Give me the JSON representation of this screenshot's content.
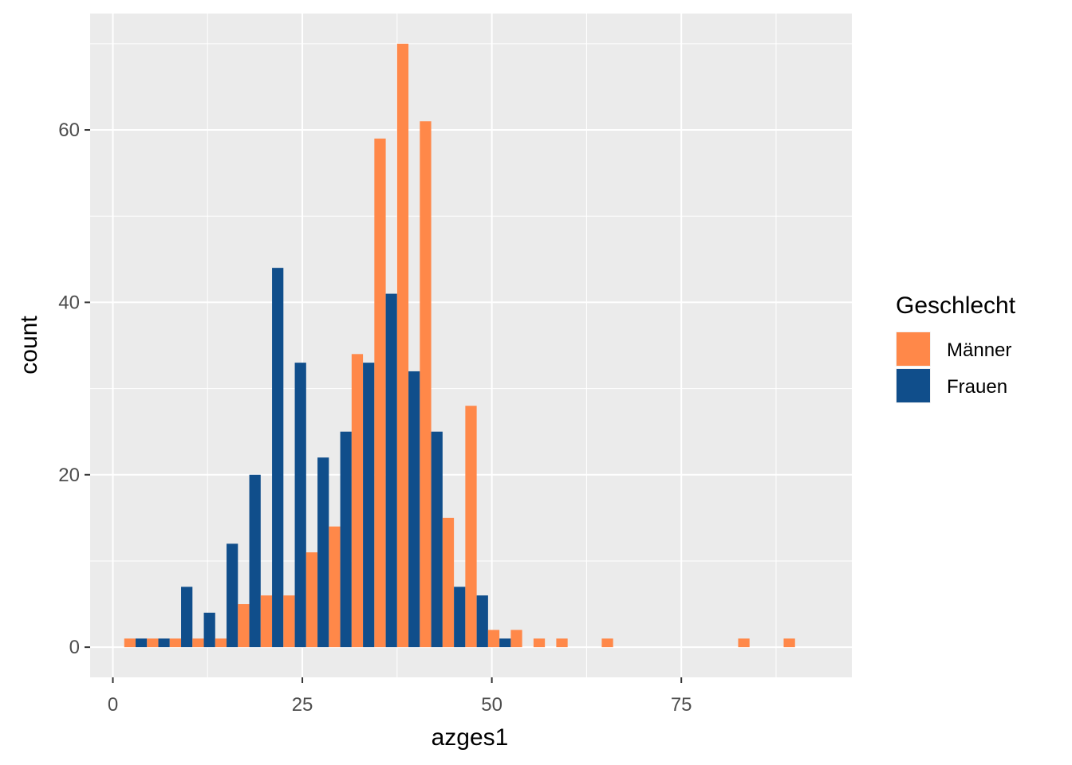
{
  "chart_data": {
    "type": "bar",
    "title": "",
    "xlabel": "azges1",
    "ylabel": "count",
    "x_ticks": [
      0,
      25,
      50,
      75
    ],
    "y_ticks": [
      0,
      20,
      40,
      60
    ],
    "xlim": [
      -3.0,
      97.5
    ],
    "ylim": [
      -3.5,
      73.5
    ],
    "bin_width": 3.0,
    "grid": true,
    "legend": {
      "title": "Geschlecht",
      "position": "right"
    },
    "bin_centers": [
      3.0,
      6.0,
      9.0,
      12.0,
      15.0,
      18.0,
      21.0,
      24.0,
      27.0,
      30.0,
      33.0,
      36.0,
      39.0,
      42.0,
      45.0,
      48.0,
      51.0,
      54.0,
      57.0,
      60.0,
      63.0,
      66.0,
      69.0,
      72.0,
      75.0,
      78.0,
      81.0,
      84.0,
      87.0,
      90.0
    ],
    "series": [
      {
        "name": "Männer",
        "color": "#FF8849",
        "values": [
          1,
          1,
          1,
          1,
          1,
          5,
          6,
          6,
          11,
          14,
          34,
          59,
          70,
          61,
          15,
          28,
          2,
          2,
          1,
          1,
          0,
          1,
          0,
          0,
          0,
          0,
          0,
          1,
          0,
          1
        ]
      },
      {
        "name": "Frauen",
        "color": "#104E8B",
        "values": [
          1,
          1,
          7,
          4,
          12,
          20,
          44,
          33,
          22,
          25,
          33,
          41,
          32,
          25,
          7,
          6,
          1,
          0,
          0,
          0,
          0,
          0,
          0,
          0,
          0,
          0,
          0,
          0,
          0,
          0
        ]
      }
    ]
  }
}
